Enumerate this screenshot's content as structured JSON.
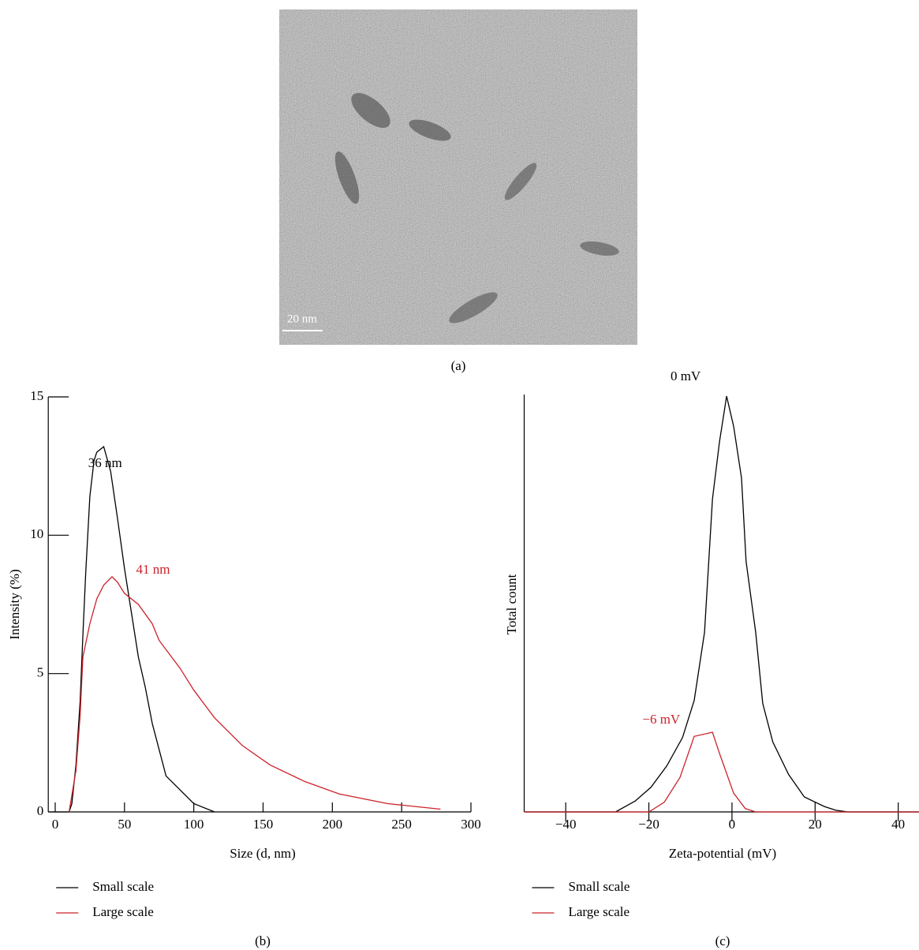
{
  "image_panel": {
    "scale_bar_label": "20 nm",
    "caption": "(a)"
  },
  "chart_data": [
    {
      "type": "line",
      "caption": "(b)",
      "ylabel": "Intensity (%)",
      "xlabel": "Size (d, nm)",
      "xlim": [
        -5,
        300
      ],
      "xticks": [
        0,
        50,
        100,
        150,
        200,
        250,
        300
      ],
      "ylim": [
        0,
        15
      ],
      "yticks": [
        0,
        5,
        10,
        15
      ],
      "grid": false,
      "legend": "below",
      "series": [
        {
          "name": "Small scale",
          "color": "#000000",
          "x": [
            10,
            12,
            15,
            18,
            20,
            22,
            25,
            28,
            30,
            35,
            40,
            45,
            50,
            55,
            60,
            65,
            70,
            80,
            100,
            115
          ],
          "values": [
            0,
            0.3,
            1.7,
            4,
            6.4,
            8.6,
            11.4,
            12.7,
            13,
            13.2,
            12.3,
            10.6,
            8.8,
            7.2,
            5.6,
            4.5,
            3.2,
            1.3,
            0.3,
            0
          ]
        },
        {
          "name": "Large scale",
          "color": "#cc2229",
          "x": [
            10,
            15,
            18,
            20,
            25,
            30,
            35,
            41,
            45,
            50,
            60,
            70,
            75,
            90,
            100,
            115,
            135,
            155,
            180,
            205,
            240,
            278
          ],
          "values": [
            0,
            1.5,
            3.5,
            5.6,
            6.8,
            7.7,
            8.2,
            8.5,
            8.3,
            7.9,
            7.5,
            6.8,
            6.2,
            5.2,
            4.4,
            3.4,
            2.4,
            1.7,
            1.1,
            0.65,
            0.3,
            0.1
          ]
        }
      ],
      "annotations": [
        {
          "text": "36 nm",
          "color": "#000000"
        },
        {
          "text": "41 nm",
          "color": "#cc2229"
        }
      ]
    },
    {
      "type": "line",
      "caption": "(c)",
      "ylabel": "Total count",
      "xlabel": "Zeta-potential (mV)",
      "xlim": [
        -50,
        45
      ],
      "xticks": [
        {
          "value": -40,
          "label": "−40"
        },
        {
          "value": -20,
          "label": "−20"
        },
        0,
        20,
        40
      ],
      "ylim": [
        0,
        100
      ],
      "grid": false,
      "legend": "below",
      "series": [
        {
          "name": "Small scale",
          "color": "#000000",
          "x": [
            -50,
            -28,
            -23.3,
            -19.5,
            -15.7,
            -11.9,
            -9.1,
            -6.6,
            -4.7,
            -3,
            -1.3,
            0.4,
            2.3,
            3.4,
            5.7,
            7.4,
            9.8,
            13.6,
            17.4,
            22.2,
            25,
            27.9,
            45
          ],
          "values": [
            0,
            0,
            2.6,
            5.9,
            11,
            17.8,
            26.7,
            43,
            75,
            88.7,
            99.6,
            92.4,
            80,
            60,
            43,
            26,
            16.8,
            9,
            3.6,
            1.3,
            0.4,
            0,
            0
          ]
        },
        {
          "name": "Large scale",
          "color": "#cc2229",
          "x": [
            -50,
            -20,
            -16.3,
            -12.5,
            -9.1,
            -4.7,
            -3,
            0.4,
            3.2,
            5.7,
            45
          ],
          "values": [
            0,
            0,
            2.3,
            8.3,
            18.1,
            19.1,
            14,
            4.5,
            0.8,
            0,
            0
          ]
        }
      ],
      "annotations": [
        {
          "text": "0 mV",
          "color": "#000000"
        },
        {
          "text": "−6 mV",
          "color": "#cc2229"
        }
      ]
    }
  ]
}
